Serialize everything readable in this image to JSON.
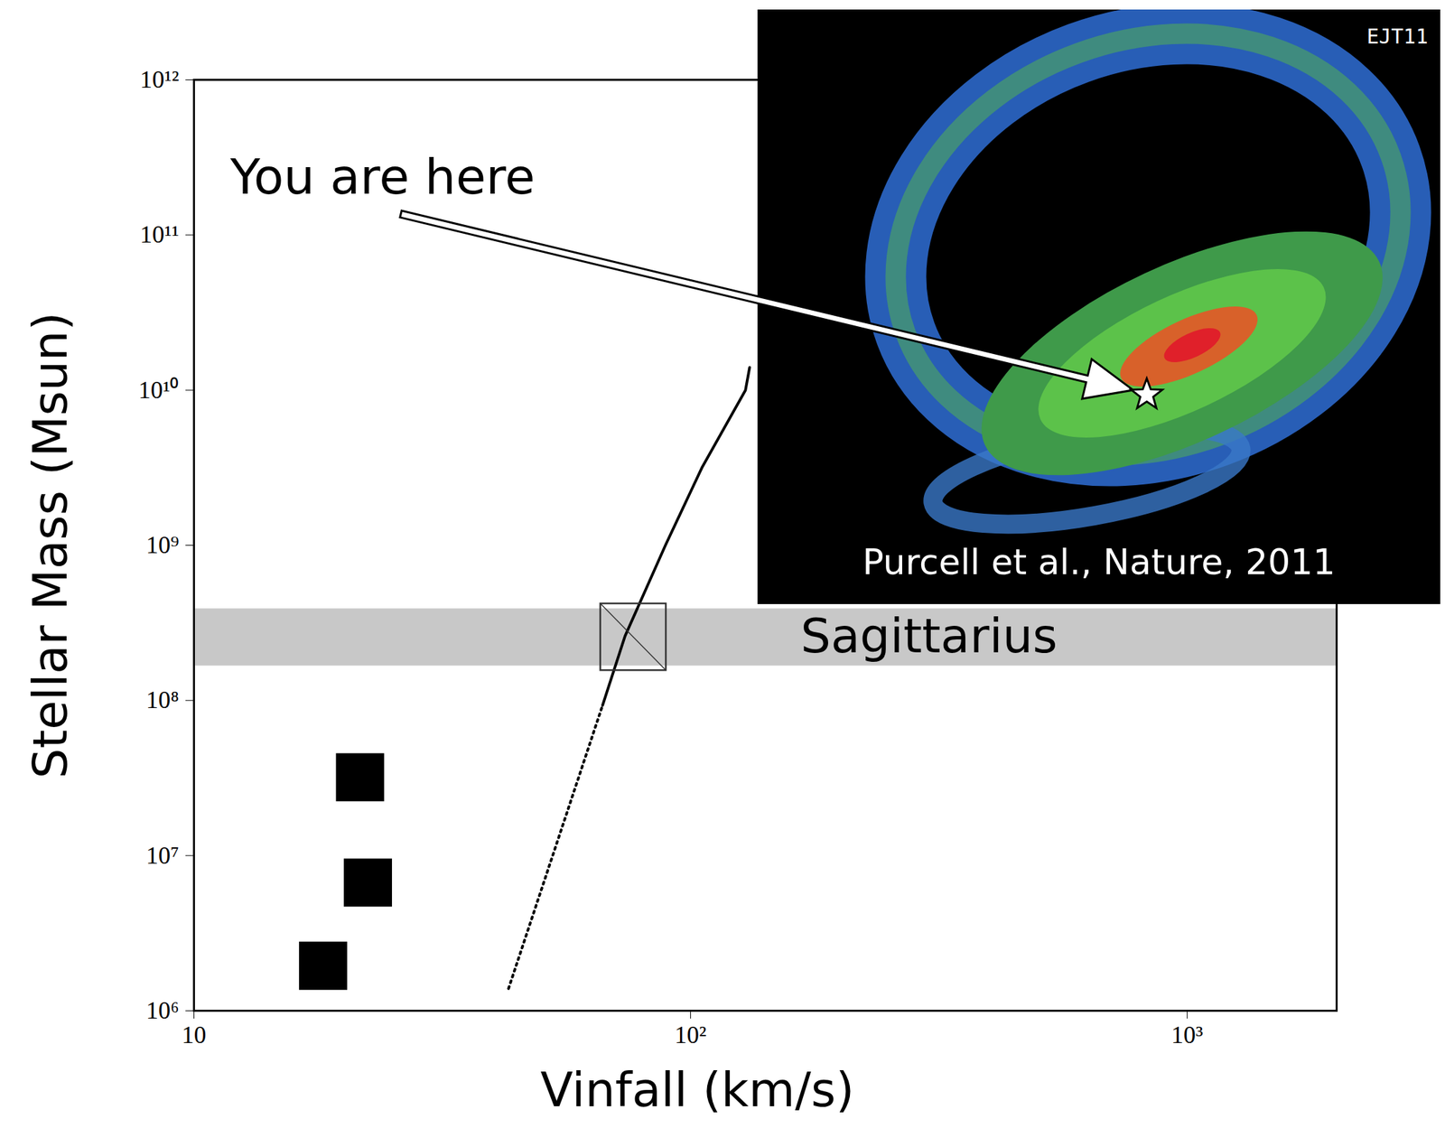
{
  "chart_data": {
    "type": "scatter",
    "log": true,
    "xlabel": "Vinfall (km/s)",
    "ylabel": "Stellar Mass (Msun)",
    "xlim": [
      10,
      2000
    ],
    "ylim": [
      1000000,
      1000000000000
    ],
    "xticks": [
      10,
      {
        "value": 100,
        "label": "10²"
      },
      {
        "value": 1000,
        "label": "10³"
      }
    ],
    "yticks": [
      {
        "value": 1000000,
        "label": "10⁶"
      },
      {
        "value": 10000000,
        "label": "10⁷"
      },
      {
        "value": 100000000,
        "label": "10⁸"
      },
      {
        "value": 1000000000,
        "label": "10⁹"
      },
      {
        "value": 10000000000,
        "label": "10¹⁰"
      },
      {
        "value": 100000000000,
        "label": "10¹¹"
      },
      {
        "value": 1000000000000,
        "label": "10¹²"
      }
    ],
    "series": [
      {
        "type": "scatter",
        "marker": "square",
        "color": "#000000",
        "x": [
          18.2,
          22.4,
          21.6
        ],
        "values": [
          1950000,
          6700000,
          32000000
        ]
      },
      {
        "type": "line",
        "line_style": "solid",
        "color": "#000000",
        "x": [
          66.5,
          73.8,
          89,
          105.6,
          129,
          131.5
        ],
        "values": [
          93000000,
          260000000,
          1000000000,
          3200000000,
          10000000000,
          14000000000
        ]
      },
      {
        "type": "line",
        "line_style": "dotted",
        "color": "#000000",
        "x": [
          43,
          66.5
        ],
        "values": [
          1390000,
          93000000
        ]
      }
    ],
    "band": {
      "label": "Sagittarius",
      "y": [
        167000000,
        390000000
      ],
      "color": "#c8c8c8"
    },
    "box": {
      "x": [
        65.9,
        89.3
      ],
      "y": [
        156000000,
        420000000
      ]
    },
    "annotations": {
      "pointer": "You are here",
      "credit": "EJT11",
      "caption": "Purcell et al., Nature, 2011"
    }
  }
}
